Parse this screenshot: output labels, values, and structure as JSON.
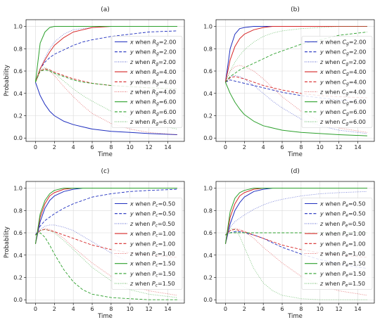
{
  "chart_data": [
    {
      "type": "line",
      "panel_label": "(a)",
      "xlabel": "Time",
      "ylabel": "Probability",
      "xlim": [
        -1,
        15.75
      ],
      "ylim": [
        -0.03,
        1.06
      ],
      "xticks": [
        "0",
        "2",
        "4",
        "6",
        "8",
        "10",
        "12",
        "14"
      ],
      "yticks": [
        "0.0",
        "0.2",
        "0.4",
        "0.6",
        "0.8",
        "1.0"
      ],
      "grid": true,
      "legend_position": "right",
      "x": [
        0,
        0.5,
        1,
        1.5,
        2,
        3,
        4,
        5,
        6,
        8,
        10,
        12,
        15
      ],
      "series": [
        {
          "name": "x when Rg=2.00",
          "param": "Rg",
          "var": "x",
          "pval": "2.00",
          "color": "#1f2fbf",
          "style": "solid",
          "values": [
            0.5,
            0.38,
            0.3,
            0.24,
            0.2,
            0.15,
            0.12,
            0.1,
            0.08,
            0.06,
            0.05,
            0.04,
            0.03
          ]
        },
        {
          "name": "y when Rg=2.00",
          "param": "Rg",
          "var": "y",
          "pval": "2.00",
          "color": "#1f2fbf",
          "style": "dashed",
          "values": [
            0.5,
            0.62,
            0.68,
            0.72,
            0.75,
            0.79,
            0.83,
            0.86,
            0.88,
            0.91,
            0.93,
            0.95,
            0.96
          ]
        },
        {
          "name": "z when Rg=2.00",
          "param": "Rg",
          "var": "z",
          "pval": "2.00",
          "color": "#1f2fbf",
          "style": "dotted",
          "values": [
            0.5,
            0.62,
            0.72,
            0.8,
            0.86,
            0.93,
            0.97,
            0.98,
            0.99,
            1.0,
            1.0,
            1.0,
            1.0
          ]
        },
        {
          "name": "x when Rg=4.00",
          "param": "Rg",
          "var": "x",
          "pval": "4.00",
          "color": "#d62728",
          "style": "solid",
          "values": [
            0.5,
            0.62,
            0.7,
            0.77,
            0.83,
            0.9,
            0.95,
            0.97,
            0.99,
            1.0,
            1.0,
            1.0,
            1.0
          ]
        },
        {
          "name": "y when Rg=4.00",
          "param": "Rg",
          "var": "y",
          "pval": "4.00",
          "color": "#d62728",
          "style": "dashed",
          "values": [
            0.5,
            0.6,
            0.62,
            0.61,
            0.59,
            0.56,
            0.53,
            0.51,
            0.49,
            0.47,
            0.46,
            0.45,
            0.44
          ]
        },
        {
          "name": "z when Rg=4.00",
          "param": "Rg",
          "var": "z",
          "pval": "4.00",
          "color": "#d62728",
          "style": "dotted",
          "values": [
            0.5,
            0.6,
            0.62,
            0.6,
            0.56,
            0.46,
            0.37,
            0.29,
            0.22,
            0.13,
            0.08,
            0.05,
            0.03
          ]
        },
        {
          "name": "x when Rg=6.00",
          "param": "Rg",
          "var": "x",
          "pval": "6.00",
          "color": "#2ca02c",
          "style": "solid",
          "values": [
            0.5,
            0.85,
            0.95,
            0.99,
            1.0,
            1.0,
            1.0,
            1.0,
            1.0,
            1.0,
            1.0,
            1.0,
            1.0
          ]
        },
        {
          "name": "y when Rg=6.00",
          "param": "Rg",
          "var": "y",
          "pval": "6.00",
          "color": "#2ca02c",
          "style": "dashed",
          "values": [
            0.5,
            0.6,
            0.61,
            0.6,
            0.58,
            0.55,
            0.52,
            0.5,
            0.49,
            0.47,
            0.46,
            0.45,
            0.44
          ]
        },
        {
          "name": "z when Rg=6.00",
          "param": "Rg",
          "var": "z",
          "pval": "6.00",
          "color": "#2ca02c",
          "style": "dotted",
          "values": [
            0.5,
            0.61,
            0.63,
            0.61,
            0.58,
            0.51,
            0.44,
            0.38,
            0.33,
            0.24,
            0.18,
            0.13,
            0.08
          ]
        }
      ]
    },
    {
      "type": "line",
      "panel_label": "(b)",
      "xlabel": "Time",
      "ylabel": "",
      "xlim": [
        -1,
        15.75
      ],
      "ylim": [
        -0.03,
        1.06
      ],
      "xticks": [
        "0",
        "2",
        "4",
        "6",
        "8",
        "10",
        "12",
        "14"
      ],
      "yticks": [
        "0.0",
        "0.2",
        "0.4",
        "0.6",
        "0.8",
        "1.0"
      ],
      "grid": true,
      "legend_position": "right",
      "x": [
        0,
        0.5,
        1,
        1.5,
        2,
        3,
        4,
        5,
        6,
        8,
        10,
        12,
        15
      ],
      "series": [
        {
          "name": "x when Cg=2.00",
          "param": "Cg",
          "var": "x",
          "pval": "2.00",
          "color": "#1f2fbf",
          "style": "solid",
          "values": [
            0.5,
            0.8,
            0.93,
            0.98,
            0.99,
            1.0,
            1.0,
            1.0,
            1.0,
            1.0,
            1.0,
            1.0,
            1.0
          ]
        },
        {
          "name": "y when Cg=2.00",
          "param": "Cg",
          "var": "y",
          "pval": "2.00",
          "color": "#1f2fbf",
          "style": "dashed",
          "values": [
            0.5,
            0.52,
            0.51,
            0.5,
            0.49,
            0.47,
            0.45,
            0.43,
            0.41,
            0.38,
            0.36,
            0.34,
            0.32
          ]
        },
        {
          "name": "z when Cg=2.00",
          "param": "Cg",
          "var": "z",
          "pval": "2.00",
          "color": "#1f2fbf",
          "style": "dotted",
          "values": [
            0.5,
            0.55,
            0.56,
            0.55,
            0.53,
            0.47,
            0.4,
            0.33,
            0.27,
            0.17,
            0.11,
            0.07,
            0.04
          ]
        },
        {
          "name": "x when Cg=4.00",
          "param": "Cg",
          "var": "x",
          "pval": "4.00",
          "color": "#d62728",
          "style": "solid",
          "values": [
            0.5,
            0.7,
            0.82,
            0.89,
            0.93,
            0.97,
            0.99,
            1.0,
            1.0,
            1.0,
            1.0,
            1.0,
            1.0
          ]
        },
        {
          "name": "y when Cg=4.00",
          "param": "Cg",
          "var": "y",
          "pval": "4.00",
          "color": "#d62728",
          "style": "dashed",
          "values": [
            0.5,
            0.54,
            0.55,
            0.54,
            0.53,
            0.5,
            0.47,
            0.45,
            0.43,
            0.4,
            0.38,
            0.37,
            0.36
          ]
        },
        {
          "name": "z when Cg=4.00",
          "param": "Cg",
          "var": "z",
          "pval": "4.00",
          "color": "#d62728",
          "style": "dotted",
          "values": [
            0.5,
            0.6,
            0.64,
            0.65,
            0.64,
            0.6,
            0.53,
            0.45,
            0.37,
            0.24,
            0.15,
            0.09,
            0.05
          ]
        },
        {
          "name": "x when Cg=6.00",
          "param": "Cg",
          "var": "x",
          "pval": "6.00",
          "color": "#2ca02c",
          "style": "solid",
          "values": [
            0.5,
            0.4,
            0.32,
            0.26,
            0.21,
            0.15,
            0.11,
            0.09,
            0.07,
            0.05,
            0.04,
            0.03,
            0.02
          ]
        },
        {
          "name": "y when Cg=6.00",
          "param": "Cg",
          "var": "y",
          "pval": "6.00",
          "color": "#2ca02c",
          "style": "dashed",
          "values": [
            0.5,
            0.55,
            0.58,
            0.61,
            0.63,
            0.67,
            0.71,
            0.75,
            0.78,
            0.84,
            0.88,
            0.92,
            0.95
          ]
        },
        {
          "name": "z when Cg=6.00",
          "param": "Cg",
          "var": "z",
          "pval": "6.00",
          "color": "#2ca02c",
          "style": "dotted",
          "values": [
            0.5,
            0.6,
            0.68,
            0.74,
            0.79,
            0.86,
            0.91,
            0.94,
            0.96,
            0.98,
            0.99,
            1.0,
            1.0
          ]
        }
      ]
    },
    {
      "type": "line",
      "panel_label": "(c)",
      "xlabel": "Time",
      "ylabel": "Probability",
      "xlim": [
        -1,
        15.75
      ],
      "ylim": [
        -0.03,
        1.06
      ],
      "xticks": [
        "0",
        "2",
        "4",
        "6",
        "8",
        "10",
        "12",
        "14"
      ],
      "yticks": [
        "0.0",
        "0.2",
        "0.4",
        "0.6",
        "0.8",
        "1.0"
      ],
      "grid": true,
      "legend_position": "right",
      "x": [
        0,
        0.5,
        1,
        1.5,
        2,
        3,
        4,
        5,
        6,
        8,
        10,
        12,
        15
      ],
      "series": [
        {
          "name": "x when Pc=0.50",
          "param": "Pc",
          "var": "x",
          "pval": "0.50",
          "color": "#1f2fbf",
          "style": "solid",
          "values": [
            0.5,
            0.7,
            0.82,
            0.89,
            0.93,
            0.97,
            0.99,
            1.0,
            1.0,
            1.0,
            1.0,
            1.0,
            1.0
          ]
        },
        {
          "name": "y when Pc=0.50",
          "param": "Pc",
          "var": "y",
          "pval": "0.50",
          "color": "#1f2fbf",
          "style": "dashed",
          "values": [
            0.58,
            0.66,
            0.71,
            0.74,
            0.77,
            0.82,
            0.86,
            0.89,
            0.92,
            0.95,
            0.97,
            0.98,
            0.99
          ]
        },
        {
          "name": "z when Pc=0.50",
          "param": "Pc",
          "var": "z",
          "pval": "0.50",
          "color": "#1f2fbf",
          "style": "dotted",
          "values": [
            0.58,
            0.63,
            0.66,
            0.67,
            0.67,
            0.65,
            0.62,
            0.57,
            0.52,
            0.42,
            0.33,
            0.26,
            0.18
          ]
        },
        {
          "name": "x when Pc=1.00",
          "param": "Pc",
          "var": "x",
          "pval": "1.00",
          "color": "#d62728",
          "style": "solid",
          "values": [
            0.5,
            0.74,
            0.86,
            0.93,
            0.96,
            0.99,
            1.0,
            1.0,
            1.0,
            1.0,
            1.0,
            1.0,
            1.0
          ]
        },
        {
          "name": "y when Pc=1.00",
          "param": "Pc",
          "var": "y",
          "pval": "1.00",
          "color": "#d62728",
          "style": "dashed",
          "values": [
            0.58,
            0.62,
            0.63,
            0.62,
            0.61,
            0.58,
            0.55,
            0.52,
            0.49,
            0.45,
            0.42,
            0.4,
            0.38
          ]
        },
        {
          "name": "z when Pc=1.00",
          "param": "Pc",
          "var": "z",
          "pval": "1.00",
          "color": "#d62728",
          "style": "dotted",
          "values": [
            0.58,
            0.62,
            0.64,
            0.63,
            0.61,
            0.55,
            0.47,
            0.4,
            0.33,
            0.21,
            0.13,
            0.08,
            0.04
          ]
        },
        {
          "name": "x when Pc=1.50",
          "param": "Pc",
          "var": "x",
          "pval": "1.50",
          "color": "#2ca02c",
          "style": "solid",
          "values": [
            0.5,
            0.77,
            0.89,
            0.95,
            0.98,
            1.0,
            1.0,
            1.0,
            1.0,
            1.0,
            1.0,
            1.0,
            1.0
          ]
        },
        {
          "name": "y when Pc=1.50",
          "param": "Pc",
          "var": "y",
          "pval": "1.50",
          "color": "#2ca02c",
          "style": "dashed",
          "values": [
            0.58,
            0.6,
            0.56,
            0.49,
            0.41,
            0.27,
            0.16,
            0.09,
            0.05,
            0.02,
            0.01,
            0.0,
            0.0
          ]
        },
        {
          "name": "z when Pc=1.50",
          "param": "Pc",
          "var": "z",
          "pval": "1.50",
          "color": "#2ca02c",
          "style": "dotted",
          "values": [
            0.58,
            0.62,
            0.63,
            0.62,
            0.6,
            0.53,
            0.45,
            0.37,
            0.29,
            0.17,
            0.09,
            0.05,
            0.02
          ]
        }
      ]
    },
    {
      "type": "line",
      "panel_label": "(d)",
      "xlabel": "Time",
      "ylabel": "",
      "xlim": [
        -1,
        15.75
      ],
      "ylim": [
        -0.03,
        1.06
      ],
      "xticks": [
        "0",
        "2",
        "4",
        "6",
        "8",
        "10",
        "12",
        "14"
      ],
      "yticks": [
        "0.0",
        "0.2",
        "0.4",
        "0.6",
        "0.8",
        "1.0"
      ],
      "grid": true,
      "legend_position": "right",
      "x": [
        0,
        0.5,
        1,
        1.5,
        2,
        3,
        4,
        5,
        6,
        8,
        10,
        12,
        15
      ],
      "series": [
        {
          "name": "x when Pe=0.50",
          "param": "Pe",
          "var": "x",
          "pval": "0.50",
          "color": "#1f2fbf",
          "style": "solid",
          "values": [
            0.5,
            0.68,
            0.8,
            0.87,
            0.92,
            0.97,
            0.99,
            1.0,
            1.0,
            1.0,
            1.0,
            1.0,
            1.0
          ]
        },
        {
          "name": "y when Pe=0.50",
          "param": "Pe",
          "var": "y",
          "pval": "0.50",
          "color": "#1f2fbf",
          "style": "dashed",
          "values": [
            0.58,
            0.6,
            0.61,
            0.61,
            0.6,
            0.58,
            0.55,
            0.51,
            0.47,
            0.41,
            0.36,
            0.32,
            0.28
          ]
        },
        {
          "name": "z when Pe=0.50",
          "param": "Pe",
          "var": "z",
          "pval": "0.50",
          "color": "#1f2fbf",
          "style": "dotted",
          "values": [
            0.58,
            0.65,
            0.7,
            0.73,
            0.76,
            0.81,
            0.85,
            0.88,
            0.9,
            0.93,
            0.95,
            0.96,
            0.97
          ]
        },
        {
          "name": "x when Pe=1.00",
          "param": "Pe",
          "var": "x",
          "pval": "1.00",
          "color": "#d62728",
          "style": "solid",
          "values": [
            0.5,
            0.74,
            0.86,
            0.93,
            0.96,
            0.99,
            1.0,
            1.0,
            1.0,
            1.0,
            1.0,
            1.0,
            1.0
          ]
        },
        {
          "name": "y when Pe=1.00",
          "param": "Pe",
          "var": "y",
          "pval": "1.00",
          "color": "#d62728",
          "style": "dashed",
          "values": [
            0.58,
            0.62,
            0.63,
            0.62,
            0.61,
            0.58,
            0.55,
            0.52,
            0.49,
            0.45,
            0.42,
            0.4,
            0.38
          ]
        },
        {
          "name": "z when Pe=1.00",
          "param": "Pe",
          "var": "z",
          "pval": "1.00",
          "color": "#d62728",
          "style": "dotted",
          "values": [
            0.58,
            0.62,
            0.64,
            0.63,
            0.61,
            0.55,
            0.47,
            0.4,
            0.33,
            0.21,
            0.13,
            0.08,
            0.04
          ]
        },
        {
          "name": "x when Pe=1.50",
          "param": "Pe",
          "var": "x",
          "pval": "1.50",
          "color": "#2ca02c",
          "style": "solid",
          "values": [
            0.5,
            0.79,
            0.91,
            0.96,
            0.98,
            1.0,
            1.0,
            1.0,
            1.0,
            1.0,
            1.0,
            1.0,
            1.0
          ]
        },
        {
          "name": "y when Pe=1.50",
          "param": "Pe",
          "var": "y",
          "pval": "1.50",
          "color": "#2ca02c",
          "style": "dashed",
          "values": [
            0.58,
            0.6,
            0.6,
            0.6,
            0.6,
            0.6,
            0.6,
            0.6,
            0.6,
            0.6,
            0.6,
            0.6,
            0.6
          ]
        },
        {
          "name": "z when Pe=1.50",
          "param": "Pe",
          "var": "z",
          "pval": "1.50",
          "color": "#2ca02c",
          "style": "dotted",
          "values": [
            0.58,
            0.64,
            0.63,
            0.57,
            0.47,
            0.28,
            0.15,
            0.08,
            0.04,
            0.01,
            0.0,
            0.0,
            0.0
          ]
        }
      ]
    }
  ]
}
